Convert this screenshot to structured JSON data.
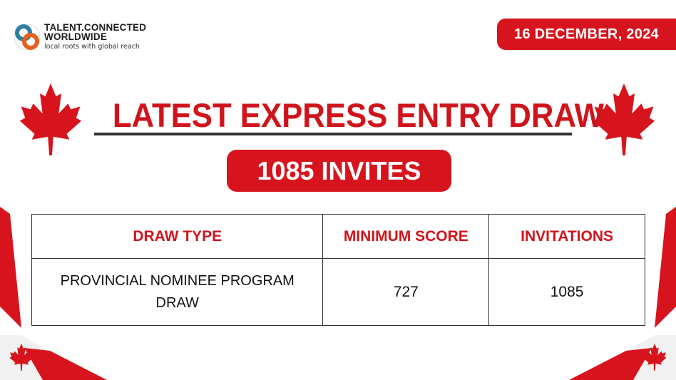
{
  "brand": {
    "name_line1": "TALENT.CONNECTED",
    "name_line2": "WORLDWIDE",
    "tagline": "local roots with global reach"
  },
  "date": "16 DECEMBER, 2024",
  "title": "LATEST EXPRESS ENTRY DRAW",
  "invites_badge": "1085 INVITES",
  "table": {
    "headers": [
      "DRAW TYPE",
      "MINIMUM SCORE",
      "INVITATIONS"
    ],
    "rows": [
      {
        "draw_type": "PROVINCIAL NOMINEE PROGRAM DRAW",
        "minimum_score": "727",
        "invitations": "1085"
      }
    ]
  },
  "colors": {
    "accent_red": "#d7141d",
    "text_dark": "#111111",
    "rule": "#333333"
  },
  "icons": [
    "logo-mark",
    "maple-leaf-icon"
  ]
}
